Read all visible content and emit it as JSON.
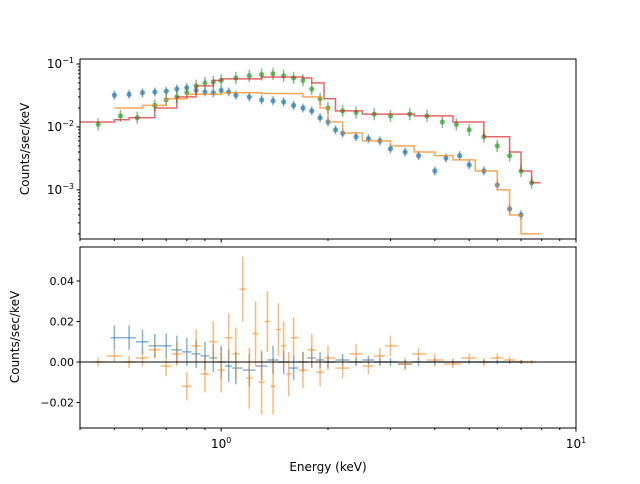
{
  "chart_data": [
    {
      "type": "scatter",
      "ylabel": "Counts/sec/keV",
      "xscale": "log",
      "yscale": "log",
      "xlim": [
        0.4,
        10
      ],
      "ylim": [
        0.000166,
        0.12
      ],
      "ytick_labels": [
        {
          "v": 0.1,
          "base": "10",
          "exp": "−1"
        },
        {
          "v": 0.01,
          "base": "10",
          "exp": "−2"
        },
        {
          "v": 0.001,
          "base": "10",
          "exp": "−3"
        }
      ],
      "series": [
        {
          "kind": "points",
          "color": "#1f77b4",
          "x": [
            0.5,
            0.55,
            0.6,
            0.65,
            0.7,
            0.75,
            0.8,
            0.85,
            0.9,
            0.95,
            1.0,
            1.05,
            1.1,
            1.2,
            1.3,
            1.4,
            1.5,
            1.6,
            1.7,
            1.8,
            1.9,
            2.0,
            2.1,
            2.2,
            2.4,
            2.6,
            2.8,
            3.0,
            3.3,
            3.6,
            4.0,
            4.3,
            4.7,
            5.0,
            5.5,
            6.0,
            6.5,
            7.0
          ],
          "y": [
            0.032,
            0.033,
            0.035,
            0.036,
            0.037,
            0.04,
            0.042,
            0.038,
            0.036,
            0.035,
            0.038,
            0.036,
            0.032,
            0.03,
            0.027,
            0.026,
            0.025,
            0.022,
            0.02,
            0.018,
            0.014,
            0.012,
            0.009,
            0.008,
            0.007,
            0.0065,
            0.006,
            0.0045,
            0.004,
            0.0035,
            0.002,
            0.0032,
            0.0035,
            0.0025,
            0.002,
            0.0012,
            0.0005,
            0.0004
          ],
          "rel_err": 0.18
        },
        {
          "kind": "points",
          "color": "#2ca02c",
          "x": [
            0.45,
            0.52,
            0.58,
            0.65,
            0.7,
            0.75,
            0.8,
            0.85,
            0.9,
            0.95,
            1.0,
            1.1,
            1.2,
            1.3,
            1.4,
            1.5,
            1.6,
            1.7,
            1.8,
            1.9,
            2.0,
            2.2,
            2.4,
            2.7,
            3.0,
            3.4,
            3.8,
            4.2,
            4.6,
            5.0,
            5.5,
            6.0,
            6.5,
            7.0,
            7.5
          ],
          "y": [
            0.011,
            0.015,
            0.014,
            0.022,
            0.027,
            0.03,
            0.035,
            0.045,
            0.05,
            0.052,
            0.055,
            0.06,
            0.065,
            0.068,
            0.07,
            0.065,
            0.06,
            0.055,
            0.04,
            0.028,
            0.02,
            0.018,
            0.017,
            0.016,
            0.015,
            0.016,
            0.015,
            0.012,
            0.011,
            0.009,
            0.007,
            0.005,
            0.0035,
            0.002,
            0.0013
          ],
          "rel_err": 0.25
        },
        {
          "kind": "step",
          "color": "#ff7f0e",
          "x": [
            0.5,
            0.6,
            0.7,
            0.8,
            1.0,
            1.3,
            1.7,
            1.9,
            2.0,
            2.2,
            2.5,
            3.0,
            3.5,
            4.0,
            4.5,
            5.2,
            6.0,
            6.5,
            7.0,
            7.5
          ],
          "y": [
            0.02,
            0.022,
            0.028,
            0.033,
            0.035,
            0.034,
            0.03,
            0.02,
            0.012,
            0.008,
            0.006,
            0.005,
            0.004,
            0.0035,
            0.003,
            0.002,
            0.001,
            0.0004,
            0.0002,
            0.0002
          ]
        },
        {
          "kind": "step",
          "color": "#d62728",
          "x": [
            0.4,
            0.5,
            0.55,
            0.65,
            0.75,
            0.85,
            0.95,
            1.0,
            1.3,
            1.7,
            1.8,
            1.95,
            2.1,
            2.5,
            3.5,
            4.5,
            5.5,
            6.5,
            7.0,
            7.5
          ],
          "y": [
            0.012,
            0.013,
            0.014,
            0.02,
            0.03,
            0.045,
            0.055,
            0.058,
            0.062,
            0.06,
            0.05,
            0.028,
            0.018,
            0.016,
            0.015,
            0.012,
            0.007,
            0.004,
            0.002,
            0.0013
          ]
        }
      ]
    },
    {
      "type": "scatter",
      "xlabel": "Energy (keV)",
      "ylabel": "Counts/sec/keV",
      "xscale": "log",
      "xlim": [
        0.4,
        10
      ],
      "ylim": [
        -0.0326,
        0.0568
      ],
      "ytick_labels": [
        "0.04",
        "0.02",
        "0.00",
        "−0.02"
      ],
      "yticks": [
        0.04,
        0.02,
        0,
        -0.02
      ],
      "xtick_labels": [
        {
          "v": 1,
          "base": "10",
          "exp": "0"
        },
        {
          "v": 10,
          "base": "10",
          "exp": "1"
        }
      ],
      "series": [
        {
          "kind": "residual",
          "color": "#1f77b4",
          "x": [
            0.5,
            0.55,
            0.6,
            0.65,
            0.7,
            0.75,
            0.8,
            0.85,
            0.9,
            0.95,
            1.0,
            1.05,
            1.1,
            1.2,
            1.3,
            1.4,
            1.5,
            1.6,
            1.7,
            1.8,
            1.9,
            2.0,
            2.2,
            2.4,
            2.6,
            2.8,
            3.0,
            3.3,
            3.6,
            4.0,
            4.5,
            5.0,
            5.5,
            6.0,
            6.5,
            7.0
          ],
          "y": [
            0.012,
            0.012,
            0.01,
            0.008,
            0.008,
            0.006,
            0.005,
            0.004,
            0.003,
            0.002,
            0.0,
            -0.002,
            -0.003,
            -0.004,
            -0.002,
            0.001,
            0.0,
            -0.003,
            0.0,
            0.002,
            0.001,
            0.0,
            0.001,
            0.0,
            0.001,
            0.0,
            0.0,
            -0.001,
            0.0,
            0.0,
            0.0,
            0.0,
            0.0,
            0.0,
            0.0,
            0.0
          ],
          "err": [
            0.006,
            0.006,
            0.006,
            0.006,
            0.006,
            0.007,
            0.007,
            0.007,
            0.007,
            0.007,
            0.008,
            0.008,
            0.008,
            0.008,
            0.007,
            0.007,
            0.006,
            0.006,
            0.005,
            0.005,
            0.004,
            0.003,
            0.003,
            0.002,
            0.002,
            0.002,
            0.002,
            0.002,
            0.002,
            0.0015,
            0.0015,
            0.001,
            0.001,
            0.001,
            0.001,
            0.001
          ]
        },
        {
          "kind": "residual",
          "color": "#ff7f0e",
          "x": [
            0.45,
            0.5,
            0.55,
            0.6,
            0.65,
            0.7,
            0.75,
            0.8,
            0.85,
            0.9,
            0.95,
            1.0,
            1.05,
            1.1,
            1.15,
            1.2,
            1.25,
            1.3,
            1.35,
            1.4,
            1.45,
            1.5,
            1.55,
            1.6,
            1.7,
            1.8,
            1.9,
            2.0,
            2.2,
            2.4,
            2.6,
            2.8,
            3.0,
            3.3,
            3.6,
            4.0,
            4.5,
            5.0,
            5.5,
            6.0,
            6.5,
            7.0,
            7.5
          ],
          "y": [
            0.0,
            0.003,
            0.0,
            0.002,
            0.006,
            -0.002,
            0.004,
            -0.012,
            0.008,
            -0.006,
            0.01,
            -0.004,
            0.012,
            0.004,
            0.036,
            -0.008,
            0.014,
            -0.01,
            0.02,
            -0.012,
            0.016,
            0.008,
            -0.006,
            0.012,
            -0.004,
            0.006,
            -0.005,
            0.002,
            -0.003,
            0.004,
            -0.002,
            0.003,
            0.008,
            -0.001,
            0.004,
            0.001,
            -0.001,
            0.002,
            0.0,
            0.002,
            0.001,
            0.0,
            0.0
          ],
          "err": [
            0.002,
            0.003,
            0.003,
            0.004,
            0.004,
            0.005,
            0.006,
            0.007,
            0.008,
            0.009,
            0.01,
            0.011,
            0.012,
            0.013,
            0.016,
            0.015,
            0.016,
            0.016,
            0.015,
            0.014,
            0.013,
            0.012,
            0.011,
            0.01,
            0.009,
            0.008,
            0.007,
            0.006,
            0.005,
            0.005,
            0.004,
            0.004,
            0.005,
            0.003,
            0.003,
            0.003,
            0.002,
            0.002,
            0.002,
            0.002,
            0.0015,
            0.001,
            0.001
          ]
        }
      ]
    }
  ]
}
